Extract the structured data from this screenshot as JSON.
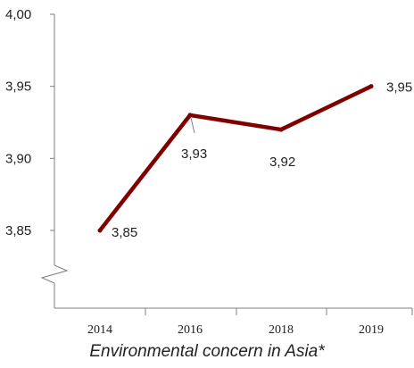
{
  "chart_data": {
    "type": "line",
    "title": "Environmental concern in Asia*",
    "xlabel": "",
    "ylabel": "",
    "categories": [
      "2014",
      "2016",
      "2018",
      "2019"
    ],
    "series": [
      {
        "values": [
          3.85,
          3.93,
          3.92,
          3.95
        ]
      }
    ],
    "data_labels": [
      "3,85",
      "3,93",
      "3,92",
      "3,95"
    ],
    "y_ticks": [
      3.85,
      3.9,
      3.95,
      4.0
    ],
    "y_tick_labels": [
      "3,85",
      "3,90",
      "3,95",
      "4,00"
    ],
    "ylim": [
      3.85,
      4.0
    ],
    "axis_break": true,
    "grid": false,
    "line_color": "#800000",
    "axis_color": "#7f7f7f"
  }
}
